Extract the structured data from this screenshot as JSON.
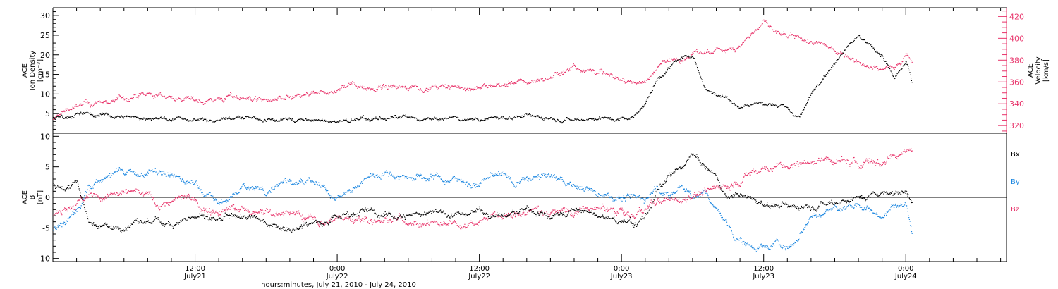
{
  "colors": {
    "density": "#000000",
    "velocity": "#e8336a",
    "bx": "#000000",
    "by": "#1a86e0",
    "bz": "#e8336a",
    "axis": "#000000"
  },
  "xaxis": {
    "title": "hours:minutes, July 21, 2010 - July 24, 2010",
    "range_hours": [
      0,
      80.5
    ],
    "major_ticks": [
      {
        "h": 12,
        "time": "12:00",
        "date": "July21"
      },
      {
        "h": 24,
        "time": "0:00",
        "date": "July22"
      },
      {
        "h": 36,
        "time": "12:00",
        "date": "July22"
      },
      {
        "h": 48,
        "time": "0:00",
        "date": "July23"
      },
      {
        "h": 60,
        "time": "12:00",
        "date": "July23"
      },
      {
        "h": 72,
        "time": "0:00",
        "date": "July24"
      }
    ]
  },
  "chart_data": [
    {
      "type": "scatter",
      "panel": "top",
      "ylabel_left": [
        "ACE",
        "Ion Density",
        "[cm⁻³]"
      ],
      "ylabel_right": [
        "ACE",
        "Velocity",
        "[km/s]"
      ],
      "ylim_left": [
        0,
        32
      ],
      "ylim_right": [
        313,
        428
      ],
      "left_ticks": [
        "5",
        "10",
        "15",
        "20",
        "25",
        "30"
      ],
      "right_ticks": [
        "320",
        "340",
        "360",
        "380",
        "400",
        "420"
      ],
      "series": [
        {
          "key": "density",
          "axis": "left",
          "x": [
            0,
            2,
            5,
            8,
            10,
            12,
            14,
            16,
            18,
            20,
            22,
            24,
            26,
            28,
            30,
            32,
            34,
            36,
            38,
            40,
            42,
            44,
            46,
            48,
            49,
            50,
            51,
            52,
            53,
            54,
            55,
            56,
            57,
            58,
            59,
            60,
            61,
            62,
            62.5,
            63,
            64,
            65,
            66,
            67,
            68,
            69,
            70,
            71,
            72,
            72.5
          ],
          "y": [
            4,
            5,
            4.5,
            4,
            3.8,
            3.5,
            3.8,
            4,
            3.5,
            3.8,
            3.2,
            3,
            3.5,
            4,
            3.8,
            3.5,
            3.8,
            3.8,
            4,
            4.5,
            4.2,
            3.8,
            4,
            3.8,
            4.5,
            8,
            14,
            17,
            19,
            20,
            12,
            10,
            9,
            7,
            7.5,
            8,
            7.5,
            6,
            5,
            4,
            10,
            15,
            18,
            23,
            25,
            22,
            20,
            14,
            18,
            13
          ]
        },
        {
          "key": "velocity",
          "axis": "right",
          "x": [
            0,
            1,
            3,
            6,
            8,
            10,
            12,
            14,
            16,
            18,
            20,
            22,
            24,
            25,
            27,
            29,
            30,
            32,
            34,
            36,
            38,
            40,
            42,
            44,
            46,
            48,
            50,
            51,
            52,
            54,
            56,
            58,
            59,
            60,
            61,
            62,
            64,
            66,
            68,
            69,
            70,
            71,
            72,
            72.5
          ],
          "y": [
            325,
            335,
            340,
            345,
            348,
            347,
            343,
            345,
            347,
            343,
            345,
            348,
            352,
            360,
            355,
            355,
            357,
            355,
            355,
            355,
            358,
            360,
            365,
            375,
            370,
            362,
            360,
            375,
            380,
            385,
            388,
            395,
            405,
            415,
            405,
            400,
            397,
            390,
            380,
            375,
            372,
            377,
            385,
            380
          ]
        }
      ]
    },
    {
      "type": "scatter",
      "panel": "bottom",
      "ylabel_left": [
        "ACE",
        "B",
        "[nT]"
      ],
      "ylim": [
        -10.5,
        10.5
      ],
      "left_ticks": [
        "-10",
        "-5",
        "0",
        "5",
        "10"
      ],
      "legend": [
        "Bx",
        "By",
        "Bz"
      ],
      "legend_placement": "right-outside",
      "zero_line": true,
      "series": [
        {
          "key": "bx",
          "x": [
            0,
            1,
            2,
            3,
            5,
            8,
            10,
            12,
            14,
            16,
            18,
            20,
            22,
            24,
            26,
            28,
            30,
            32,
            34,
            36,
            38,
            40,
            42,
            44,
            46,
            48,
            49,
            50,
            51,
            52,
            53,
            54,
            55,
            56,
            57,
            58,
            59,
            60,
            62,
            64,
            66,
            68,
            70,
            72,
            72.5
          ],
          "y": [
            2,
            1.5,
            3,
            -4,
            -5,
            -4,
            -4,
            -3,
            -4,
            -3,
            -4,
            -5,
            -4,
            -3,
            -2,
            -3,
            -3,
            -2,
            -3,
            -2,
            -3,
            -2,
            -3,
            -2,
            -3,
            -4,
            -4.5,
            -3,
            1,
            3,
            5,
            7,
            5,
            3,
            0,
            1,
            -0.5,
            -1,
            -1.5,
            -1,
            -0.5,
            0,
            1,
            1,
            0
          ]
        },
        {
          "key": "by",
          "x": [
            0,
            1,
            2,
            3,
            4,
            5,
            7,
            9,
            10,
            12,
            14,
            15,
            16,
            18,
            19,
            20,
            22,
            24,
            26,
            27,
            28,
            30,
            32,
            34,
            36,
            37,
            38,
            39,
            40,
            42,
            44,
            46,
            48,
            50,
            51,
            52,
            53,
            54,
            55,
            56,
            57,
            58,
            59,
            60,
            61,
            62,
            62.5,
            64,
            66,
            68,
            70,
            72,
            72.5
          ],
          "y": [
            -5,
            -4,
            -2,
            2,
            3,
            4,
            4,
            4,
            3.5,
            2,
            -1,
            0,
            2,
            1,
            3,
            3,
            2,
            0,
            2,
            4,
            4,
            3.5,
            3.5,
            3,
            2,
            3.5,
            4,
            2,
            3,
            3.5,
            2,
            1,
            0,
            0,
            2,
            0,
            2,
            0,
            1,
            -2,
            -5,
            -7,
            -8,
            -8,
            -7.5,
            -8,
            -8,
            -3,
            -2,
            -1,
            -3,
            0,
            -5
          ]
        },
        {
          "key": "bz",
          "x": [
            0,
            1,
            3,
            5,
            7,
            9,
            11,
            13,
            15,
            17,
            19,
            21,
            23,
            25,
            27,
            29,
            31,
            33,
            35,
            37,
            39,
            41,
            43,
            45,
            47,
            49,
            51,
            53,
            55,
            57,
            58,
            59,
            60,
            62,
            64,
            66,
            68,
            70,
            72,
            72.5
          ],
          "y": [
            -3,
            -1,
            0,
            0,
            1,
            -1,
            0,
            -2,
            -1,
            -3,
            -2,
            -3,
            -4,
            -3,
            -3.5,
            -3.5,
            -4,
            -4,
            -4,
            -3,
            -3,
            -2,
            -2,
            -2,
            -2,
            -3,
            -1,
            0,
            1,
            2,
            3,
            4,
            5,
            5,
            6,
            6,
            5.5,
            6,
            8,
            8
          ]
        }
      ]
    }
  ]
}
